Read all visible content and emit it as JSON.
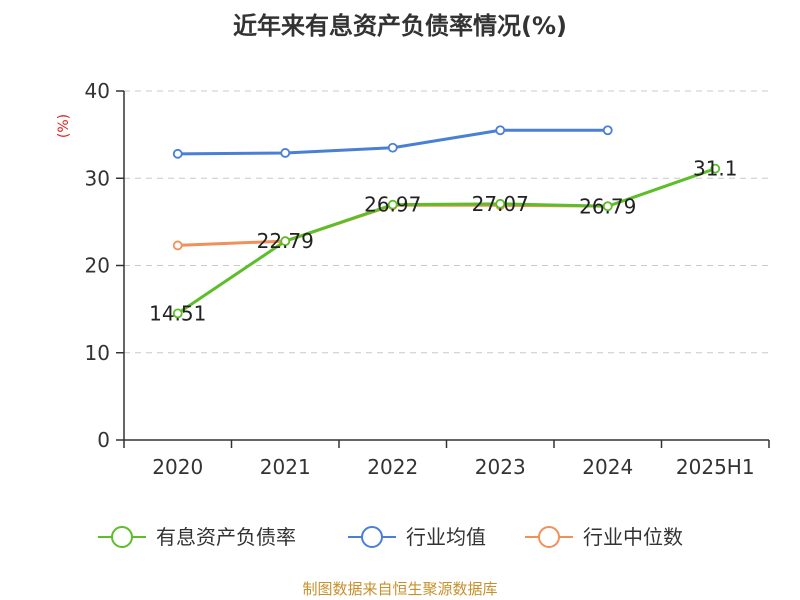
{
  "chart_data": {
    "type": "line",
    "title": "近年来有息资产负债率情况(%)",
    "ylabel": "(%)",
    "categories": [
      "2020",
      "2021",
      "2022",
      "2023",
      "2024",
      "2025H1"
    ],
    "ylim": [
      0,
      40
    ],
    "yticks": [
      0,
      10,
      20,
      30,
      40
    ],
    "grid": true,
    "legend_position": "bottom",
    "series": [
      {
        "name": "有息资产负债率",
        "color": "#5dbe2a",
        "values": [
          14.51,
          22.79,
          26.97,
          27.07,
          26.79,
          31.1
        ],
        "data_labels": [
          "14.51",
          "22.79",
          "26.97",
          "27.07",
          "26.79",
          "31.1"
        ]
      },
      {
        "name": "行业均值",
        "color": "#4a7fd6",
        "values": [
          32.8,
          32.9,
          33.5,
          35.5,
          35.5,
          null
        ]
      },
      {
        "name": "行业中位数",
        "color": "#f0905a",
        "values": [
          22.3,
          22.8,
          26.9,
          26.9,
          26.8,
          null
        ]
      }
    ],
    "source": "制图数据来自恒生聚源数据库"
  }
}
